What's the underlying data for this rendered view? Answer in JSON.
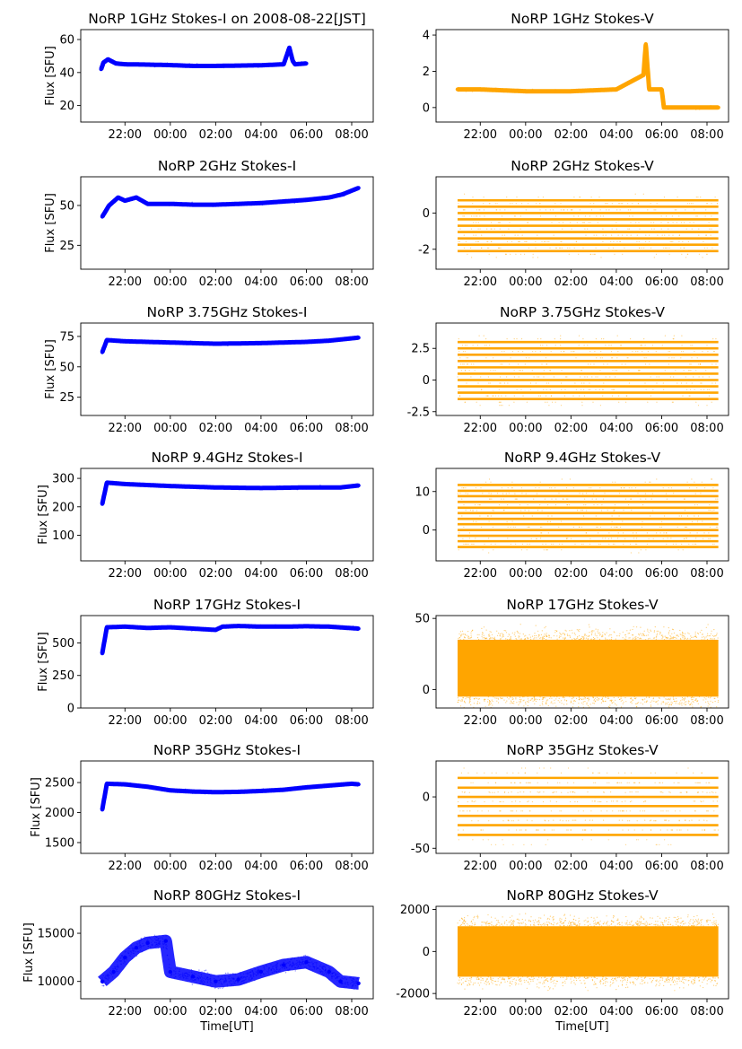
{
  "chart_data": [
    {
      "type": "scatter",
      "title": "NoRP 1GHz Stokes-I on 2008-08-22[JST]",
      "xlabel": "",
      "ylabel": "Flux [SFU]",
      "xticks": [
        "22:00",
        "00:00",
        "02:00",
        "04:00",
        "06:00",
        "08:00"
      ],
      "yticks": [
        20,
        40,
        60
      ],
      "ylim": [
        10,
        66
      ],
      "color": "#0000ff",
      "series": [
        {
          "points": [
            [
              20.95,
              42
            ],
            [
              21.05,
              46
            ],
            [
              21.25,
              48
            ],
            [
              21.6,
              45.5
            ],
            [
              22.0,
              45
            ],
            [
              23.0,
              44.8
            ],
            [
              0.0,
              44.5
            ],
            [
              1.0,
              44
            ],
            [
              2.0,
              44
            ],
            [
              3.0,
              44.2
            ],
            [
              4.0,
              44.4
            ],
            [
              5.0,
              45
            ],
            [
              5.25,
              55
            ],
            [
              5.4,
              47
            ],
            [
              5.5,
              45
            ],
            [
              6.0,
              45.5
            ]
          ]
        }
      ]
    },
    {
      "type": "scatter",
      "title": "NoRP 1GHz Stokes-V",
      "xlabel": "",
      "ylabel": "",
      "xticks": [
        "22:00",
        "00:00",
        "02:00",
        "04:00",
        "06:00",
        "08:00"
      ],
      "yticks": [
        0,
        2,
        4
      ],
      "ylim": [
        -0.8,
        4.3
      ],
      "color": "#ffa500",
      "series": [
        {
          "points": [
            [
              21.0,
              1.0
            ],
            [
              22.0,
              1.0
            ],
            [
              0.0,
              0.9
            ],
            [
              2.0,
              0.9
            ],
            [
              4.0,
              1.0
            ],
            [
              5.2,
              1.8
            ],
            [
              5.3,
              3.5
            ],
            [
              5.45,
              1.0
            ],
            [
              6.0,
              1.0
            ],
            [
              6.1,
              0
            ],
            [
              8.5,
              0
            ]
          ]
        }
      ]
    },
    {
      "type": "scatter",
      "title": "NoRP 2GHz Stokes-I",
      "xlabel": "",
      "ylabel": "Flux [SFU]",
      "xticks": [
        "22:00",
        "00:00",
        "02:00",
        "04:00",
        "06:00",
        "08:00"
      ],
      "yticks": [
        25,
        50
      ],
      "ylim": [
        10,
        68
      ],
      "color": "#0000ff",
      "series": [
        {
          "points": [
            [
              21.0,
              43
            ],
            [
              21.3,
              50
            ],
            [
              21.7,
              55
            ],
            [
              22.0,
              53
            ],
            [
              22.5,
              55
            ],
            [
              23.0,
              51
            ],
            [
              0.0,
              51
            ],
            [
              1.0,
              50.5
            ],
            [
              2.0,
              50.5
            ],
            [
              3.0,
              51
            ],
            [
              4.0,
              51.5
            ],
            [
              5.0,
              52.5
            ],
            [
              6.0,
              53.5
            ],
            [
              7.0,
              55
            ],
            [
              7.6,
              57
            ],
            [
              8.3,
              61
            ]
          ]
        }
      ]
    },
    {
      "type": "scatter",
      "title": "NoRP 2GHz Stokes-V",
      "xlabel": "",
      "ylabel": "",
      "xticks": [
        "22:00",
        "00:00",
        "02:00",
        "04:00",
        "06:00",
        "08:00"
      ],
      "yticks": [
        -2,
        0
      ],
      "ylim": [
        -3.1,
        2.0
      ],
      "color": "#ffa500",
      "series": [
        {
          "levels": [
            0.7,
            0.35,
            0.0,
            -0.35,
            -0.7,
            -1.05,
            -1.4,
            -1.75,
            -2.1
          ],
          "x_range": [
            "21:00",
            "08:30"
          ]
        }
      ]
    },
    {
      "type": "scatter",
      "title": "NoRP 3.75GHz Stokes-I",
      "xlabel": "",
      "ylabel": "Flux [SFU]",
      "xticks": [
        "22:00",
        "00:00",
        "02:00",
        "04:00",
        "06:00",
        "08:00"
      ],
      "yticks": [
        25,
        50,
        75
      ],
      "ylim": [
        10,
        86
      ],
      "color": "#0000ff",
      "series": [
        {
          "points": [
            [
              21.0,
              62
            ],
            [
              21.2,
              72
            ],
            [
              22.0,
              71
            ],
            [
              0.0,
              70
            ],
            [
              2.0,
              69
            ],
            [
              4.0,
              69.5
            ],
            [
              6.0,
              70.5
            ],
            [
              7.0,
              71.5
            ],
            [
              8.3,
              74
            ]
          ]
        }
      ]
    },
    {
      "type": "scatter",
      "title": "NoRP 3.75GHz Stokes-V",
      "xlabel": "",
      "ylabel": "",
      "xticks": [
        "22:00",
        "00:00",
        "02:00",
        "04:00",
        "06:00",
        "08:00"
      ],
      "yticks": [
        -2.5,
        0.0,
        2.5
      ],
      "ylim": [
        -2.8,
        4.5
      ],
      "color": "#ffa500",
      "series": [
        {
          "levels": [
            3.0,
            2.5,
            2.0,
            1.5,
            1.0,
            0.5,
            0.0,
            -0.5,
            -1.0,
            -1.5
          ],
          "x_range": [
            "21:00",
            "08:30"
          ]
        }
      ]
    },
    {
      "type": "scatter",
      "title": "NoRP 9.4GHz Stokes-I",
      "xlabel": "",
      "ylabel": "Flux [SFU]",
      "xticks": [
        "22:00",
        "00:00",
        "02:00",
        "04:00",
        "06:00",
        "08:00"
      ],
      "yticks": [
        100,
        200,
        300
      ],
      "ylim": [
        10,
        335
      ],
      "color": "#0000ff",
      "series": [
        {
          "points": [
            [
              21.0,
              210
            ],
            [
              21.2,
              285
            ],
            [
              22.0,
              280
            ],
            [
              0.0,
              273
            ],
            [
              2.0,
              268
            ],
            [
              4.0,
              266
            ],
            [
              6.0,
              268
            ],
            [
              7.5,
              268
            ],
            [
              8.3,
              275
            ]
          ]
        }
      ]
    },
    {
      "type": "scatter",
      "title": "NoRP 9.4GHz Stokes-V",
      "xlabel": "",
      "ylabel": "",
      "xticks": [
        "22:00",
        "00:00",
        "02:00",
        "04:00",
        "06:00",
        "08:00"
      ],
      "yticks": [
        0,
        10
      ],
      "ylim": [
        -8,
        16
      ],
      "color": "#ffa500",
      "series": [
        {
          "levels": [
            11.7,
            10.2,
            8.8,
            7.3,
            5.8,
            4.4,
            2.9,
            1.5,
            0.0,
            -1.5,
            -2.9,
            -4.4
          ],
          "x_range": [
            "21:00",
            "08:30"
          ]
        }
      ]
    },
    {
      "type": "scatter",
      "title": "NoRP 17GHz Stokes-I",
      "xlabel": "",
      "ylabel": "Flux [SFU]",
      "xticks": [
        "22:00",
        "00:00",
        "02:00",
        "04:00",
        "06:00",
        "08:00"
      ],
      "yticks": [
        0,
        250,
        500
      ],
      "ylim": [
        0,
        710
      ],
      "color": "#0000ff",
      "series": [
        {
          "points": [
            [
              21.0,
              420
            ],
            [
              21.2,
              620
            ],
            [
              22.0,
              625
            ],
            [
              23.0,
              615
            ],
            [
              0.0,
              620
            ],
            [
              1.0,
              610
            ],
            [
              2.0,
              600
            ],
            [
              2.3,
              625
            ],
            [
              3.0,
              630
            ],
            [
              4.0,
              625
            ],
            [
              5.0,
              625
            ],
            [
              6.0,
              628
            ],
            [
              7.0,
              625
            ],
            [
              8.3,
              610
            ]
          ]
        }
      ]
    },
    {
      "type": "scatter",
      "title": "NoRP 17GHz Stokes-V",
      "xlabel": "",
      "ylabel": "",
      "xticks": [
        "22:00",
        "00:00",
        "02:00",
        "04:00",
        "06:00",
        "08:00"
      ],
      "yticks": [
        0,
        50
      ],
      "ylim": [
        -13,
        52
      ],
      "color": "#ffa500",
      "series": [
        {
          "band": [
            -5,
            35
          ],
          "x_range": [
            "21:00",
            "08:30"
          ]
        }
      ]
    },
    {
      "type": "scatter",
      "title": "NoRP 35GHz Stokes-I",
      "xlabel": "",
      "ylabel": "Flux [SFU]",
      "xticks": [
        "22:00",
        "00:00",
        "02:00",
        "04:00",
        "06:00",
        "08:00"
      ],
      "yticks": [
        1500,
        2000,
        2500
      ],
      "ylim": [
        1320,
        2860
      ],
      "color": "#0000ff",
      "series": [
        {
          "points": [
            [
              21.0,
              2050
            ],
            [
              21.2,
              2480
            ],
            [
              22.0,
              2470
            ],
            [
              23.0,
              2430
            ],
            [
              0.0,
              2370
            ],
            [
              1.0,
              2350
            ],
            [
              2.0,
              2340
            ],
            [
              3.0,
              2345
            ],
            [
              4.0,
              2360
            ],
            [
              5.0,
              2380
            ],
            [
              6.0,
              2420
            ],
            [
              7.0,
              2450
            ],
            [
              8.0,
              2480
            ],
            [
              8.3,
              2470
            ]
          ]
        }
      ]
    },
    {
      "type": "scatter",
      "title": "NoRP 35GHz Stokes-V",
      "xlabel": "",
      "ylabel": "",
      "xticks": [
        "22:00",
        "00:00",
        "02:00",
        "04:00",
        "06:00",
        "08:00"
      ],
      "yticks": [
        -50,
        0
      ],
      "ylim": [
        -55,
        35
      ],
      "color": "#ffa500",
      "series": [
        {
          "levels": [
            18.5,
            9,
            0,
            -9,
            -18.5,
            -27.5,
            -37
          ],
          "x_range": [
            "21:00",
            "08:30"
          ]
        }
      ]
    },
    {
      "type": "scatter",
      "title": "NoRP 80GHz Stokes-I",
      "xlabel": "Time[UT]",
      "ylabel": "Flux [SFU]",
      "xticks": [
        "22:00",
        "00:00",
        "02:00",
        "04:00",
        "06:00",
        "08:00"
      ],
      "yticks": [
        10000,
        15000
      ],
      "ylim": [
        8200,
        17800
      ],
      "color": "#0000ff",
      "series": [
        {
          "points": [
            [
              21.0,
              10000
            ],
            [
              21.5,
              11000
            ],
            [
              22.0,
              12500
            ],
            [
              22.5,
              13500
            ],
            [
              23.0,
              14000
            ],
            [
              23.8,
              14200
            ],
            [
              0.0,
              11000
            ],
            [
              1.0,
              10500
            ],
            [
              2.0,
              10000
            ],
            [
              3.0,
              10200
            ],
            [
              4.0,
              11000
            ],
            [
              5.0,
              11700
            ],
            [
              6.0,
              12000
            ],
            [
              7.0,
              11000
            ],
            [
              7.5,
              10000
            ],
            [
              8.3,
              9800
            ]
          ]
        }
      ]
    },
    {
      "type": "scatter",
      "title": "NoRP 80GHz Stokes-V",
      "xlabel": "Time[UT]",
      "ylabel": "",
      "xticks": [
        "22:00",
        "00:00",
        "02:00",
        "04:00",
        "06:00",
        "08:00"
      ],
      "yticks": [
        -2000,
        0,
        2000
      ],
      "ylim": [
        -2250,
        2150
      ],
      "color": "#ffa500",
      "series": [
        {
          "band": [
            -1200,
            1200
          ],
          "x_range": [
            "21:00",
            "08:30"
          ]
        }
      ]
    }
  ]
}
